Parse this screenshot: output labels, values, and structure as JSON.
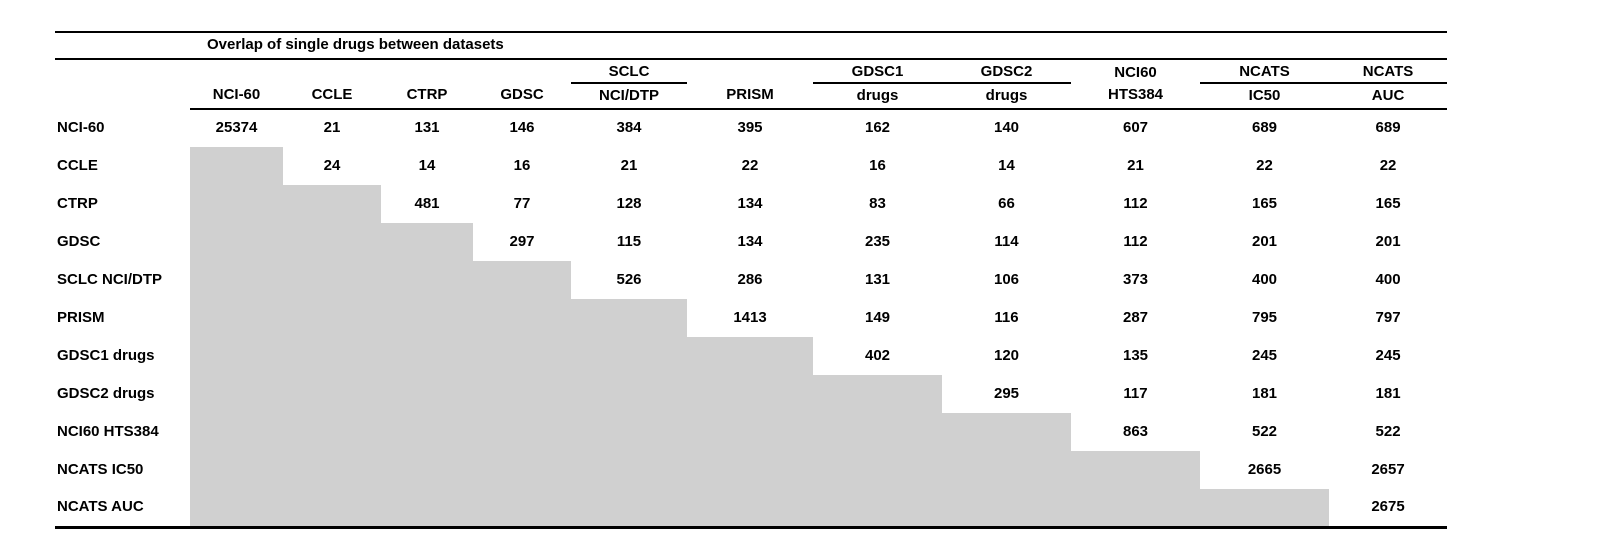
{
  "title": "Overlap of single drugs between datasets",
  "table": {
    "shaded_color": "#d0d0d0",
    "rule_color": "#000000",
    "column_groups": [
      {
        "top": "",
        "bottom": "NCI-60",
        "top_underline": false
      },
      {
        "top": "",
        "bottom": "CCLE",
        "top_underline": false
      },
      {
        "top": "",
        "bottom": "CTRP",
        "top_underline": false
      },
      {
        "top": "",
        "bottom": "GDSC",
        "top_underline": false
      },
      {
        "top": "SCLC",
        "bottom": "NCI/DTP",
        "top_underline": true
      },
      {
        "top": "",
        "bottom": "PRISM",
        "top_underline": false
      },
      {
        "top": "GDSC1",
        "bottom": "drugs",
        "top_underline": true
      },
      {
        "top": "GDSC2",
        "bottom": "drugs",
        "top_underline": true
      },
      {
        "top": "NCI60",
        "bottom": "HTS384",
        "top_underline": false
      },
      {
        "top": "NCATS",
        "bottom": "IC50",
        "top_underline": true
      },
      {
        "top": "NCATS",
        "bottom": "AUC",
        "top_underline": true
      }
    ],
    "rows": [
      {
        "label": "NCI-60",
        "values": [
          "25374",
          "21",
          "131",
          "146",
          "384",
          "395",
          "162",
          "140",
          "607",
          "689",
          "689"
        ]
      },
      {
        "label": "CCLE",
        "values": [
          null,
          "24",
          "14",
          "16",
          "21",
          "22",
          "16",
          "14",
          "21",
          "22",
          "22"
        ]
      },
      {
        "label": "CTRP",
        "values": [
          null,
          null,
          "481",
          "77",
          "128",
          "134",
          "83",
          "66",
          "112",
          "165",
          "165"
        ]
      },
      {
        "label": "GDSC",
        "values": [
          null,
          null,
          null,
          "297",
          "115",
          "134",
          "235",
          "114",
          "112",
          "201",
          "201"
        ]
      },
      {
        "label": "SCLC NCI/DTP",
        "values": [
          null,
          null,
          null,
          null,
          "526",
          "286",
          "131",
          "106",
          "373",
          "400",
          "400"
        ]
      },
      {
        "label": "PRISM",
        "values": [
          null,
          null,
          null,
          null,
          null,
          "1413",
          "149",
          "116",
          "287",
          "795",
          "797"
        ]
      },
      {
        "label": "GDSC1 drugs",
        "values": [
          null,
          null,
          null,
          null,
          null,
          null,
          "402",
          "120",
          "135",
          "245",
          "245"
        ]
      },
      {
        "label": "GDSC2 drugs",
        "values": [
          null,
          null,
          null,
          null,
          null,
          null,
          null,
          "295",
          "117",
          "181",
          "181"
        ]
      },
      {
        "label": "NCI60 HTS384",
        "values": [
          null,
          null,
          null,
          null,
          null,
          null,
          null,
          null,
          "863",
          "522",
          "522"
        ]
      },
      {
        "label": "NCATS IC50",
        "values": [
          null,
          null,
          null,
          null,
          null,
          null,
          null,
          null,
          null,
          "2665",
          "2657"
        ]
      },
      {
        "label": "NCATS AUC",
        "values": [
          null,
          null,
          null,
          null,
          null,
          null,
          null,
          null,
          null,
          null,
          "2675"
        ]
      }
    ]
  }
}
